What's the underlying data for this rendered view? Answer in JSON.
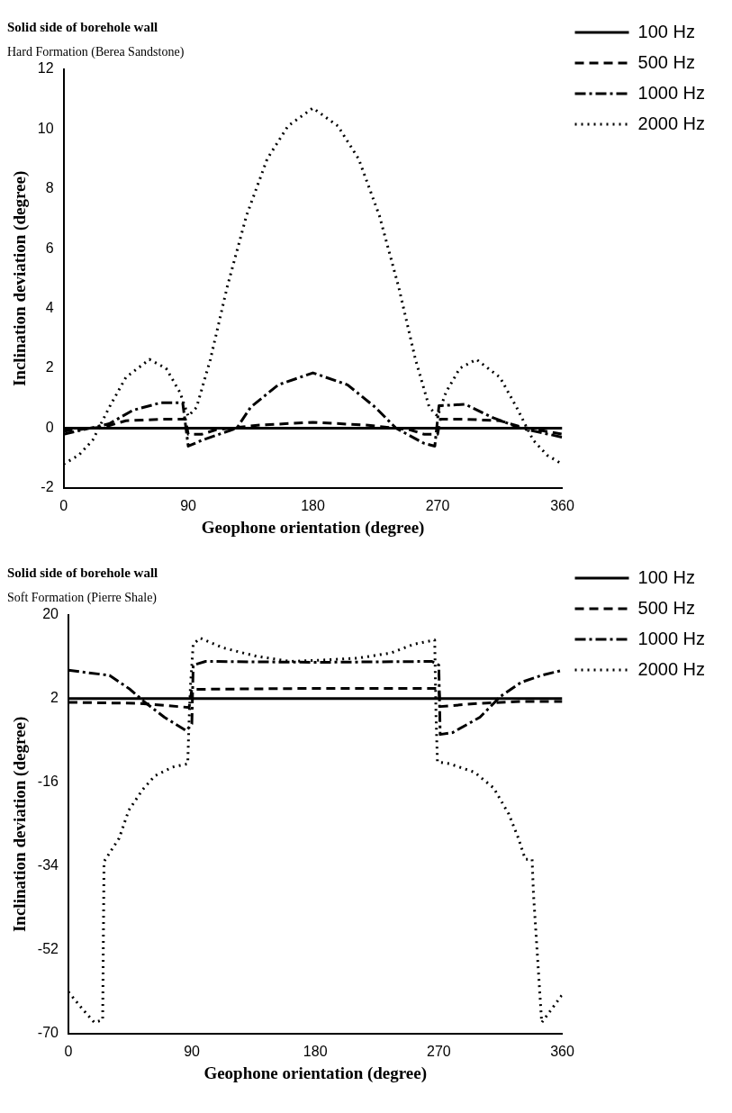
{
  "chart_data": [
    {
      "type": "line",
      "title": "Solid side of borehole wall",
      "subtitle": "Hard Formation (Berea Sandstone)",
      "xlabel": "Geophone orientation (degree)",
      "ylabel": "Inclination deviation (degree)",
      "xlim": [
        0,
        360
      ],
      "xticks": [
        0,
        90,
        180,
        270,
        360
      ],
      "ylim": [
        -2,
        12
      ],
      "yticks": [
        -2,
        0,
        2,
        4,
        6,
        8,
        10,
        12
      ],
      "grid": false,
      "legend": "top right",
      "marker": "none",
      "series": [
        {
          "name": "100 Hz",
          "color": "#000000",
          "line_style": "solid",
          "x": [
            0,
            90,
            180,
            270,
            360
          ],
          "values": [
            0,
            0,
            0,
            0,
            0
          ]
        },
        {
          "name": "500 Hz",
          "color": "#000000",
          "line_style": "dashed",
          "x": [
            0,
            30,
            45,
            70,
            88,
            90,
            100,
            110,
            140,
            180,
            220,
            250,
            260,
            270,
            272,
            290,
            315,
            330,
            360
          ],
          "values": [
            -0.1,
            0.05,
            0.25,
            0.3,
            0.3,
            -0.2,
            -0.2,
            -0.05,
            0.1,
            0.2,
            0.1,
            -0.05,
            -0.2,
            -0.2,
            0.3,
            0.3,
            0.25,
            0.05,
            -0.2
          ]
        },
        {
          "name": "1000 Hz",
          "color": "#000000",
          "line_style": "dashdot",
          "x": [
            0,
            33,
            50,
            70,
            86,
            90,
            100,
            125,
            135,
            155,
            180,
            205,
            225,
            240,
            260,
            268,
            271,
            290,
            310,
            330,
            360
          ],
          "values": [
            -0.2,
            0.15,
            0.6,
            0.85,
            0.85,
            -0.6,
            -0.4,
            0,
            0.7,
            1.45,
            1.85,
            1.45,
            0.7,
            0,
            -0.5,
            -0.6,
            0.75,
            0.8,
            0.35,
            0,
            -0.3
          ]
        },
        {
          "name": "2000 Hz",
          "color": "#000000",
          "line_style": "dotted",
          "x": [
            0,
            11,
            21,
            33,
            45,
            62,
            74,
            84,
            90,
            96,
            106,
            118,
            132,
            147,
            162,
            180,
            198,
            213,
            228,
            242,
            254,
            264,
            270,
            276,
            286,
            298,
            315,
            327,
            339,
            349,
            360
          ],
          "values": [
            -1.2,
            -0.9,
            -0.4,
            0.7,
            1.7,
            2.3,
            2.0,
            1.2,
            0.4,
            0.7,
            2.3,
            4.7,
            7.1,
            9.0,
            10.1,
            10.7,
            10.1,
            9.0,
            7.1,
            4.7,
            2.3,
            0.7,
            0.4,
            1.2,
            2.0,
            2.3,
            1.7,
            0.7,
            -0.4,
            -0.9,
            -1.2
          ]
        }
      ]
    },
    {
      "type": "line",
      "title": "Solid side of borehole wall",
      "subtitle": "Soft Formation (Pierre Shale)",
      "xlabel": "Geophone orientation (degree)",
      "ylabel": "Inclination deviation (degree)",
      "xlim": [
        0,
        360
      ],
      "xticks": [
        0,
        90,
        180,
        270,
        360
      ],
      "ylim": [
        -70,
        20
      ],
      "yticks": [
        -70,
        -52,
        -34,
        -16,
        2,
        20
      ],
      "grid": false,
      "legend": "top right",
      "marker": "none",
      "series": [
        {
          "name": "100 Hz",
          "color": "#000000",
          "line_style": "solid",
          "x": [
            0,
            90,
            180,
            270,
            360
          ],
          "values": [
            2,
            2,
            2,
            2,
            2
          ]
        },
        {
          "name": "500 Hz",
          "color": "#000000",
          "line_style": "dashed",
          "x": [
            0,
            50,
            80,
            88,
            90,
            180,
            270,
            271,
            300,
            330,
            360
          ],
          "values": [
            1.2,
            1.0,
            0.3,
            0.1,
            4.0,
            4.2,
            4.2,
            0.3,
            1.0,
            1.4,
            1.4
          ]
        },
        {
          "name": "1000 Hz",
          "color": "#000000",
          "line_style": "dashdot",
          "x": [
            0,
            30,
            45,
            55,
            70,
            86,
            90,
            91,
            100,
            180,
            265,
            270,
            271,
            280,
            300,
            315,
            330,
            345,
            360
          ],
          "values": [
            8.1,
            7.0,
            4.0,
            1.4,
            -2,
            -4.9,
            -3.4,
            9.2,
            10,
            9.8,
            10,
            9.2,
            -5.7,
            -5.3,
            -2,
            2.5,
            5.5,
            7,
            8.1
          ]
        },
        {
          "name": "2000 Hz",
          "color": "#000000",
          "line_style": "dotted",
          "x": [
            0,
            10,
            19,
            25,
            26,
            37,
            44,
            54,
            63,
            76,
            87,
            88,
            89,
            91,
            96,
            113,
            137,
            162,
            186,
            211,
            235,
            252,
            267,
            268,
            269,
            278,
            296,
            310,
            321,
            328,
            333,
            338,
            339,
            345,
            360
          ],
          "values": [
            -61,
            -64.6,
            -67.6,
            -67,
            -33,
            -28,
            -22,
            -17.6,
            -14.6,
            -12.7,
            -12,
            -2.7,
            4.8,
            13.7,
            15,
            12.9,
            11.1,
            10,
            10.3,
            10.7,
            11.8,
            13.7,
            14.6,
            -2,
            -11.6,
            -12,
            -13.8,
            -17.2,
            -22.8,
            -28,
            -32.5,
            -32.5,
            -40,
            -67.6,
            -61.6
          ]
        }
      ]
    }
  ]
}
